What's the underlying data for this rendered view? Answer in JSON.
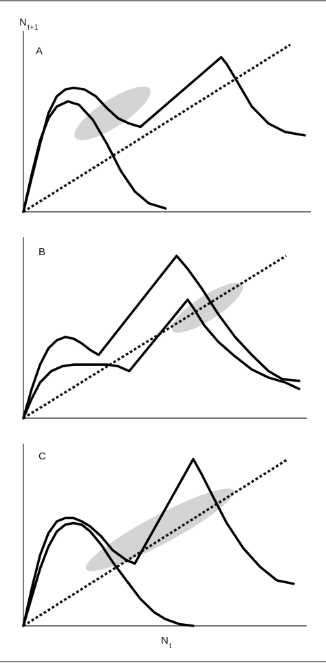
{
  "figure": {
    "ylabel_main": "N",
    "ylabel_sub": "t+1",
    "xlabel_main": "N",
    "xlabel_sub": "t"
  },
  "chart_data": [
    {
      "type": "line",
      "panel_label": "A",
      "diagonal": true,
      "series": [
        {
          "x": [
            0,
            0.03,
            0.06,
            0.09,
            0.12,
            0.16,
            0.2,
            0.25,
            0.3,
            0.35,
            0.4,
            0.45,
            0.51
          ],
          "values": [
            0,
            0.22,
            0.42,
            0.55,
            0.62,
            0.65,
            0.63,
            0.54,
            0.4,
            0.24,
            0.12,
            0.05,
            0.02
          ]
        },
        {
          "x": [
            0,
            0.03,
            0.06,
            0.09,
            0.12,
            0.15,
            0.18,
            0.22,
            0.26,
            0.3,
            0.34,
            0.38,
            0.42,
            0.71,
            0.73,
            0.77,
            0.82,
            0.88,
            0.94,
            1.01
          ],
          "values": [
            0,
            0.2,
            0.4,
            0.58,
            0.68,
            0.72,
            0.73,
            0.72,
            0.68,
            0.61,
            0.55,
            0.52,
            0.5,
            0.91,
            0.87,
            0.76,
            0.62,
            0.52,
            0.47,
            0.45
          ]
        }
      ],
      "highlight": {
        "cx": 0.32,
        "cy": 0.58,
        "rx": 0.16,
        "ry": 0.08,
        "angle_deg": -33
      }
    },
    {
      "type": "line",
      "panel_label": "B",
      "diagonal": true,
      "series": [
        {
          "x": [
            0,
            0.03,
            0.06,
            0.09,
            0.12,
            0.15,
            0.18,
            0.21,
            0.24,
            0.27,
            0.55,
            0.59,
            0.64,
            0.7,
            0.76,
            0.82,
            0.88,
            0.93,
            0.99
          ],
          "values": [
            0,
            0.18,
            0.33,
            0.43,
            0.48,
            0.5,
            0.49,
            0.46,
            0.42,
            0.39,
            1.0,
            0.92,
            0.8,
            0.64,
            0.5,
            0.39,
            0.29,
            0.24,
            0.23
          ]
        },
        {
          "x": [
            0,
            0.03,
            0.06,
            0.1,
            0.14,
            0.18,
            0.22,
            0.26,
            0.3,
            0.34,
            0.38,
            0.59,
            0.61,
            0.65,
            0.7,
            0.76,
            0.82,
            0.88,
            0.94,
            0.99
          ],
          "values": [
            0,
            0.12,
            0.22,
            0.29,
            0.32,
            0.33,
            0.33,
            0.33,
            0.33,
            0.32,
            0.29,
            0.73,
            0.68,
            0.57,
            0.47,
            0.38,
            0.3,
            0.25,
            0.22,
            0.18
          ]
        }
      ],
      "highlight": {
        "cx": 0.66,
        "cy": 0.68,
        "rx": 0.15,
        "ry": 0.075,
        "angle_deg": -33
      }
    },
    {
      "type": "line",
      "panel_label": "C",
      "diagonal": true,
      "series": [
        {
          "x": [
            0,
            0.03,
            0.06,
            0.09,
            0.12,
            0.15,
            0.18,
            0.21,
            0.24,
            0.28,
            0.32,
            0.37,
            0.42,
            0.47,
            0.51,
            0.56,
            0.61
          ],
          "values": [
            0,
            0.17,
            0.34,
            0.47,
            0.56,
            0.6,
            0.61,
            0.6,
            0.56,
            0.48,
            0.38,
            0.27,
            0.16,
            0.08,
            0.04,
            0.01,
            0.0
          ]
        },
        {
          "x": [
            0,
            0.03,
            0.06,
            0.09,
            0.12,
            0.15,
            0.18,
            0.21,
            0.24,
            0.28,
            0.32,
            0.37,
            0.4,
            0.61,
            0.64,
            0.68,
            0.73,
            0.79,
            0.85,
            0.91,
            0.97
          ],
          "values": [
            0,
            0.22,
            0.42,
            0.55,
            0.62,
            0.64,
            0.64,
            0.62,
            0.59,
            0.53,
            0.45,
            0.39,
            0.37,
            0.99,
            0.9,
            0.77,
            0.61,
            0.46,
            0.35,
            0.27,
            0.25
          ]
        }
      ],
      "highlight": {
        "cx": 0.49,
        "cy": 0.57,
        "rx": 0.3,
        "ry": 0.085,
        "angle_deg": -28
      }
    }
  ]
}
